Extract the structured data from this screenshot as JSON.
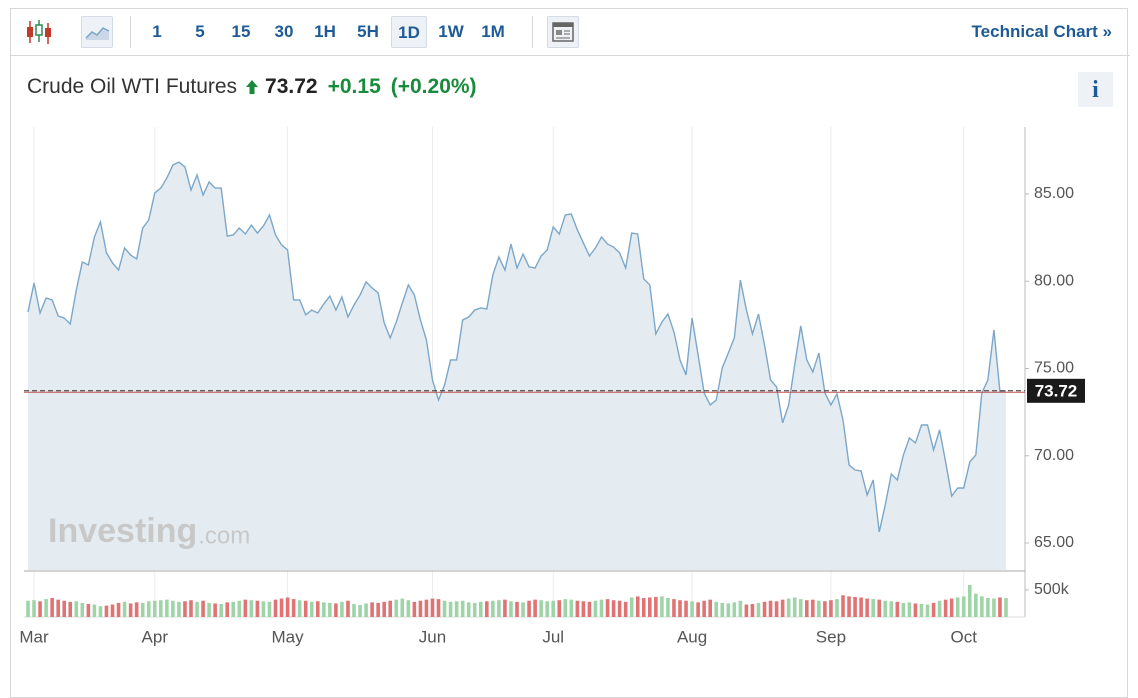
{
  "toolbar": {
    "intervals": [
      "1",
      "5",
      "15",
      "30",
      "1H",
      "5H",
      "1D",
      "1W",
      "1M"
    ],
    "selected_interval": "1D",
    "technical_link": "Technical Chart »"
  },
  "header": {
    "name": "Crude Oil WTI Futures",
    "price": 73.72,
    "change": "+0.15",
    "change_percent": "(+0.20%)",
    "info": "i"
  },
  "watermark": {
    "brand": "Investing",
    "suffix": ".com"
  },
  "chart_data": {
    "type": "area",
    "color": "#7ba7c9",
    "fill": "#e4ecf2",
    "categories": [
      null,
      "Mar",
      null,
      null,
      null,
      null,
      null,
      null,
      null,
      null,
      null,
      null,
      null,
      null,
      null,
      null,
      null,
      null,
      null,
      null,
      null,
      "Apr",
      null,
      null,
      null,
      null,
      null,
      null,
      null,
      null,
      null,
      null,
      null,
      null,
      null,
      null,
      null,
      null,
      null,
      null,
      null,
      null,
      null,
      "May",
      null,
      null,
      null,
      null,
      null,
      null,
      null,
      null,
      null,
      null,
      null,
      null,
      null,
      null,
      null,
      null,
      null,
      null,
      null,
      null,
      null,
      null,
      null,
      "Jun",
      null,
      null,
      null,
      null,
      null,
      null,
      null,
      null,
      null,
      null,
      null,
      null,
      null,
      null,
      null,
      null,
      null,
      null,
      null,
      "Jul",
      null,
      null,
      null,
      null,
      null,
      null,
      null,
      null,
      null,
      null,
      null,
      null,
      null,
      null,
      null,
      null,
      null,
      null,
      null,
      null,
      null,
      null,
      "Aug",
      null,
      null,
      null,
      null,
      null,
      null,
      null,
      null,
      null,
      null,
      null,
      null,
      null,
      null,
      null,
      null,
      null,
      null,
      null,
      null,
      null,
      null,
      "Sep",
      null,
      null,
      null,
      null,
      null,
      null,
      null,
      null,
      null,
      null,
      null,
      null,
      null,
      null,
      null,
      null,
      null,
      null,
      null,
      null,
      null,
      "Oct",
      null,
      null,
      null,
      null,
      null,
      null,
      null
    ],
    "values": [
      78.24,
      79.9,
      78.18,
      79.04,
      78.93,
      78.01,
      77.89,
      77.55,
      79.5,
      81.1,
      80.93,
      82.54,
      83.4,
      81.62,
      81.05,
      80.64,
      81.91,
      81.5,
      81.28,
      83.05,
      83.51,
      85.06,
      85.34,
      85.92,
      86.66,
      86.83,
      86.55,
      85.23,
      86.09,
      84.94,
      85.69,
      85.34,
      85.34,
      82.59,
      82.65,
      83.05,
      82.71,
      83.22,
      82.76,
      83.17,
      83.8,
      82.65,
      82.08,
      81.79,
      78.93,
      78.93,
      78.07,
      78.35,
      78.18,
      78.7,
      79.15,
      78.35,
      79.1,
      77.95,
      78.64,
      79.21,
      79.96,
      79.61,
      79.33,
      77.61,
      76.75,
      77.66,
      78.75,
      79.79,
      79.21,
      77.78,
      76.63,
      74.34,
      73.19,
      74.05,
      75.49,
      75.49,
      77.78,
      77.95,
      78.35,
      78.47,
      78.41,
      80.36,
      81.39,
      80.64,
      82.13,
      80.76,
      81.56,
      80.82,
      80.76,
      81.45,
      81.79,
      83.11,
      82.71,
      83.8,
      83.85,
      82.94,
      82.19,
      81.45,
      81.91,
      82.54,
      82.13,
      81.96,
      81.62,
      80.76,
      82.76,
      82.71,
      80.13,
      79.79,
      76.98,
      77.66,
      78.12,
      77.09,
      75.49,
      74.63,
      77.89,
      75.77,
      73.6,
      72.91,
      73.19,
      75.03,
      75.89,
      76.75,
      80.07,
      78.35,
      76.98,
      78.12,
      76.35,
      74.34,
      73.94,
      71.88,
      72.91,
      75.2,
      77.44,
      75.49,
      74.8,
      75.89,
      73.6,
      72.91,
      73.54,
      72.05,
      69.47,
      69.18,
      69.13,
      67.75,
      68.61,
      65.63,
      67.18,
      68.95,
      68.61,
      70.04,
      71.02,
      70.73,
      71.76,
      71.76,
      70.33,
      71.48,
      69.64,
      67.69,
      68.15,
      68.15,
      69.64,
      70.04,
      73.6,
      74.34,
      77.21,
      73.65,
      73.72
    ],
    "ylim": [
      63.45,
      88.84
    ],
    "yticks": [
      {
        "value": 65,
        "label": "65.00"
      },
      {
        "value": 70,
        "label": "70.00"
      },
      {
        "value": 75,
        "label": "75.00"
      },
      {
        "value": 80,
        "label": "80.00"
      },
      {
        "value": 85,
        "label": "85.00"
      }
    ],
    "last_price_color": "#c0504d",
    "volume": {
      "up_color": "#9fd4a8",
      "down_color": "#e07474",
      "ylim": [
        0,
        830000
      ],
      "yticks": [
        {
          "value": 500000,
          "label": "500k"
        }
      ],
      "values": [
        300000,
        310000,
        290000,
        330000,
        350000,
        320000,
        300000,
        280000,
        290000,
        260000,
        240000,
        230000,
        200000,
        210000,
        230000,
        260000,
        280000,
        250000,
        270000,
        260000,
        290000,
        300000,
        310000,
        320000,
        300000,
        280000,
        290000,
        310000,
        280000,
        300000,
        260000,
        250000,
        240000,
        270000,
        280000,
        300000,
        320000,
        310000,
        300000,
        290000,
        280000,
        320000,
        340000,
        360000,
        330000,
        310000,
        300000,
        280000,
        290000,
        270000,
        260000,
        250000,
        280000,
        300000,
        240000,
        220000,
        250000,
        270000,
        260000,
        280000,
        300000,
        320000,
        340000,
        310000,
        280000,
        300000,
        320000,
        340000,
        330000,
        300000,
        280000,
        290000,
        300000,
        270000,
        260000,
        280000,
        290000,
        300000,
        310000,
        320000,
        290000,
        280000,
        270000,
        300000,
        320000,
        310000,
        290000,
        300000,
        310000,
        330000,
        320000,
        300000,
        290000,
        280000,
        300000,
        320000,
        330000,
        310000,
        300000,
        280000,
        360000,
        380000,
        350000,
        360000,
        370000,
        380000,
        350000,
        330000,
        310000,
        300000,
        290000,
        270000,
        300000,
        320000,
        280000,
        260000,
        250000,
        270000,
        300000,
        230000,
        240000,
        260000,
        280000,
        300000,
        290000,
        320000,
        340000,
        360000,
        330000,
        310000,
        320000,
        300000,
        290000,
        310000,
        330000,
        400000,
        380000,
        370000,
        360000,
        340000,
        330000,
        320000,
        300000,
        290000,
        280000,
        260000,
        270000,
        250000,
        240000,
        230000,
        260000,
        300000,
        320000,
        340000,
        360000,
        380000,
        590000,
        430000,
        380000,
        350000,
        340000,
        360000,
        350000
      ]
    }
  }
}
